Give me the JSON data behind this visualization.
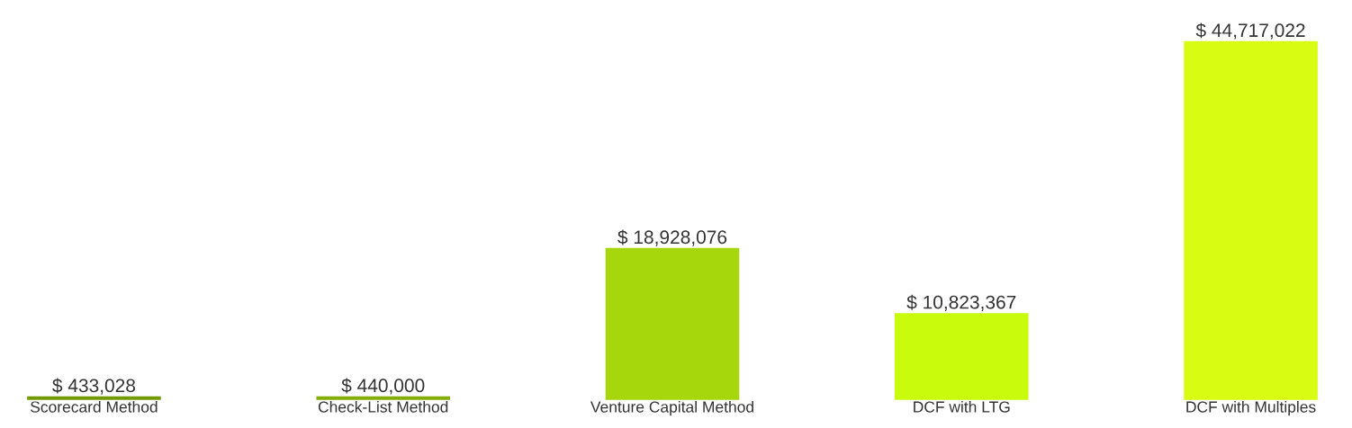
{
  "chart_data": {
    "type": "bar",
    "categories": [
      "Scorecard Method",
      "Check-List Method",
      "Venture Capital Method",
      "DCF with LTG",
      "DCF with Multiples"
    ],
    "values": [
      433028,
      440000,
      18928076,
      10823367,
      44717022
    ],
    "colors": [
      "#739a06",
      "#84ad08",
      "#a6d60c",
      "#c8fc0c",
      "#d8fc12"
    ],
    "value_labels": [
      "$ 433,028",
      "$ 440,000",
      "$ 18,928,076",
      "$ 10,823,367",
      "$ 44,717,022"
    ]
  }
}
